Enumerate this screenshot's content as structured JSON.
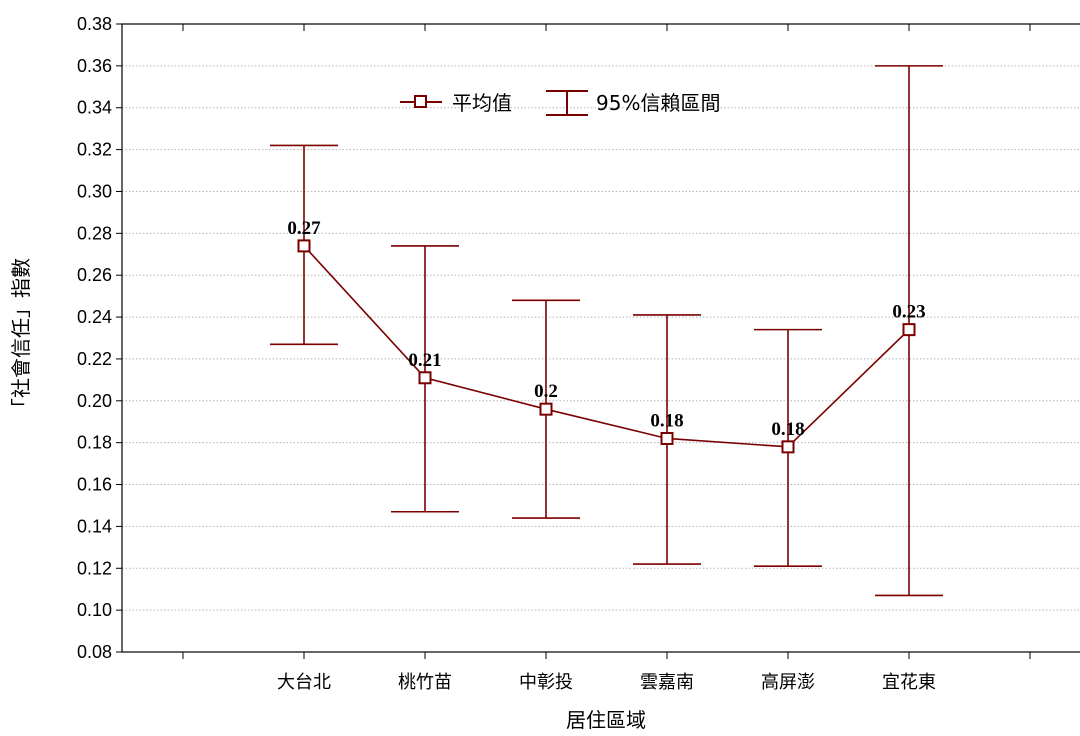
{
  "chart_data": {
    "type": "line",
    "xlabel": "居住區域",
    "ylabel": "「社會信任」指數",
    "categories": [
      "大台北",
      "桃竹苗",
      "中彰投",
      "雲嘉南",
      "高屏澎",
      "宜花東"
    ],
    "ylim": [
      0.08,
      0.38
    ],
    "yticks": [
      "0.08",
      "0.10",
      "0.12",
      "0.14",
      "0.16",
      "0.18",
      "0.20",
      "0.22",
      "0.24",
      "0.26",
      "0.28",
      "0.30",
      "0.32",
      "0.34",
      "0.36",
      "0.38"
    ],
    "grid": "horizontal dotted",
    "legend_position": "top-center",
    "series": [
      {
        "name": "平均值",
        "values": [
          0.274,
          0.211,
          0.196,
          0.182,
          0.178,
          0.234
        ],
        "data_labels": [
          "0.27",
          "0.21",
          "0.2",
          "0.18",
          "0.18",
          "0.23"
        ]
      },
      {
        "name": "95%信賴區間",
        "lower": [
          0.227,
          0.147,
          0.144,
          0.122,
          0.121,
          0.107
        ],
        "upper": [
          0.322,
          0.274,
          0.248,
          0.241,
          0.234,
          0.36
        ]
      }
    ],
    "color": "#7a0000"
  }
}
